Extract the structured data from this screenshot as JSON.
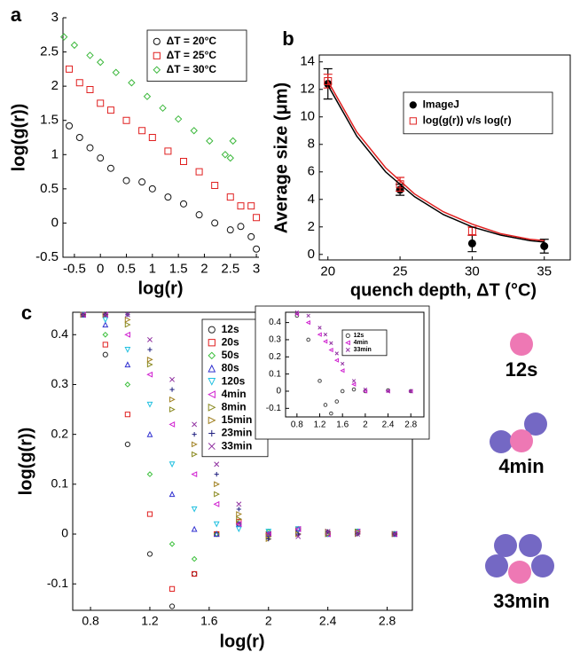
{
  "chart_data": [
    {
      "type": "scatter",
      "panel_label": "a",
      "x_label": "log(r)",
      "y_label": "log(g(r))",
      "xlim": [
        -0.72,
        3.05
      ],
      "ylim": [
        -0.5,
        3
      ],
      "xticks": [
        -0.5,
        0,
        0.5,
        1,
        1.5,
        2,
        2.5,
        3
      ],
      "yticks": [
        -0.5,
        0,
        0.5,
        1,
        1.5,
        2,
        2.5,
        3
      ],
      "series": [
        {
          "name": "ΔT = 20°C",
          "color": "#111111",
          "marker": "circle",
          "x": [
            -0.6,
            -0.4,
            -0.2,
            0,
            0.2,
            0.5,
            0.8,
            1.0,
            1.3,
            1.6,
            1.9,
            2.2,
            2.5,
            2.7,
            2.9,
            3.0
          ],
          "values": [
            1.42,
            1.25,
            1.1,
            0.95,
            0.8,
            0.62,
            0.6,
            0.5,
            0.38,
            0.28,
            0.12,
            0.0,
            -0.1,
            -0.05,
            -0.2,
            -0.38
          ]
        },
        {
          "name": "ΔT = 25°C",
          "color": "#e02020",
          "marker": "square",
          "x": [
            -0.6,
            -0.4,
            -0.2,
            0,
            0.2,
            0.5,
            0.8,
            1.0,
            1.3,
            1.6,
            1.9,
            2.2,
            2.5,
            2.7,
            2.9,
            3.0
          ],
          "values": [
            2.25,
            2.05,
            1.95,
            1.75,
            1.65,
            1.5,
            1.35,
            1.25,
            1.05,
            0.9,
            0.75,
            0.55,
            0.38,
            0.25,
            0.25,
            0.08
          ]
        },
        {
          "name": "ΔT = 30°C",
          "color": "#3cb83c",
          "marker": "diamond",
          "x": [
            -0.7,
            -0.5,
            -0.2,
            0,
            0.3,
            0.6,
            0.9,
            1.2,
            1.5,
            1.8,
            2.1,
            2.4,
            2.5,
            2.55
          ],
          "values": [
            2.72,
            2.6,
            2.45,
            2.35,
            2.2,
            2.05,
            1.85,
            1.68,
            1.52,
            1.35,
            1.2,
            1.0,
            0.95,
            1.2
          ]
        }
      ]
    },
    {
      "type": "scatter",
      "panel_label": "b",
      "x_label": "quench depth, ΔT (°C)",
      "y_label": "Average size (μm)",
      "xlim": [
        19.4,
        36.8
      ],
      "ylim": [
        -0.4,
        14.5
      ],
      "xticks": [
        20,
        25,
        30,
        35
      ],
      "yticks": [
        0,
        2,
        4,
        6,
        8,
        10,
        12,
        14
      ],
      "series": [
        {
          "name": "ImageJ",
          "color": "#000000",
          "marker": "dot",
          "x": [
            20,
            25,
            30,
            35
          ],
          "values": [
            12.4,
            4.7,
            0.8,
            0.6
          ],
          "errors": [
            1.1,
            0.4,
            0.6,
            0.5
          ]
        },
        {
          "name": "log(g(r)) v/s log(r)",
          "color": "#e02020",
          "marker": "square",
          "x": [
            20,
            25,
            30
          ],
          "values": [
            12.6,
            5.1,
            1.7
          ],
          "errors": [
            0.5,
            0.5,
            0.3
          ]
        },
        {
          "color": "#000000",
          "mode": "line",
          "x": [
            20,
            22,
            24,
            26,
            28,
            30,
            32,
            34,
            35
          ],
          "values": [
            12.3,
            8.6,
            6.0,
            4.2,
            2.9,
            2.0,
            1.4,
            1.0,
            0.9
          ]
        },
        {
          "color": "#e02020",
          "mode": "line",
          "x": [
            20,
            22,
            24,
            26,
            28,
            30,
            32,
            34,
            35
          ],
          "values": [
            12.6,
            8.9,
            6.3,
            4.4,
            3.1,
            2.2,
            1.5,
            1.1,
            1.0
          ]
        }
      ]
    },
    {
      "type": "scatter",
      "panel_label": "c",
      "x_label": "log(r)",
      "y_label": "log(g(r))",
      "xlim": [
        0.68,
        2.97
      ],
      "ylim": [
        -0.153,
        0.445
      ],
      "xticks": [
        0.8,
        1.2,
        1.6,
        2,
        2.4,
        2.8
      ],
      "yticks": [
        -0.1,
        0,
        0.1,
        0.2,
        0.3,
        0.4
      ],
      "series": [
        {
          "name": "12s",
          "color": "#222222",
          "marker": "circle",
          "x": [
            0.75,
            0.9,
            1.05,
            1.2,
            1.35,
            1.5,
            1.65,
            1.8,
            2.0,
            2.2,
            2.4,
            2.6,
            2.85
          ],
          "values": [
            0.44,
            0.36,
            0.18,
            -0.04,
            -0.145,
            -0.08,
            0.0,
            0.02,
            0.0,
            0.01,
            0.0,
            0.005,
            0.0
          ]
        },
        {
          "name": "20s",
          "color": "#e02020",
          "marker": "square",
          "x": [
            0.75,
            0.9,
            1.05,
            1.2,
            1.35,
            1.5,
            1.65,
            1.8,
            2.0,
            2.2,
            2.4,
            2.6,
            2.85
          ],
          "values": [
            0.44,
            0.38,
            0.24,
            0.04,
            -0.11,
            -0.08,
            0.0,
            0.025,
            0.0,
            0.01,
            0.0,
            0.005,
            0.0
          ]
        },
        {
          "name": "50s",
          "color": "#3cc03c",
          "marker": "diamond",
          "x": [
            0.75,
            0.9,
            1.05,
            1.2,
            1.35,
            1.5,
            1.65,
            1.8,
            2.0,
            2.2,
            2.4,
            2.6,
            2.85
          ],
          "values": [
            0.44,
            0.4,
            0.3,
            0.12,
            -0.02,
            -0.05,
            0.0,
            0.02,
            0.005,
            0.01,
            0.0,
            0.005,
            0.0
          ]
        },
        {
          "name": "80s",
          "color": "#3030d0",
          "marker": "triangle",
          "x": [
            0.75,
            0.9,
            1.05,
            1.2,
            1.35,
            1.5,
            1.65,
            1.8,
            2.0,
            2.2,
            2.4,
            2.6,
            2.85
          ],
          "values": [
            0.44,
            0.42,
            0.34,
            0.2,
            0.08,
            0.01,
            0.0,
            0.02,
            0.0,
            0.01,
            0.0,
            0.005,
            0.0
          ]
        },
        {
          "name": "120s",
          "color": "#20c0e0",
          "marker": "triangle-down",
          "x": [
            0.75,
            0.9,
            1.05,
            1.2,
            1.35,
            1.5,
            1.65,
            1.8,
            2.0,
            2.2,
            2.4,
            2.6,
            2.85
          ],
          "values": [
            0.44,
            0.43,
            0.37,
            0.26,
            0.14,
            0.05,
            0.02,
            0.01,
            0.005,
            0.01,
            0.0,
            0.005,
            0.0
          ]
        },
        {
          "name": "4min",
          "color": "#d020d0",
          "marker": "triangle-left",
          "x": [
            0.75,
            0.9,
            1.05,
            1.2,
            1.35,
            1.5,
            1.65,
            1.8,
            2.0,
            2.2,
            2.4,
            2.6,
            2.85
          ],
          "values": [
            0.44,
            0.44,
            0.4,
            0.32,
            0.22,
            0.12,
            0.06,
            0.02,
            0.0,
            0.01,
            0.0,
            0.005,
            0.0
          ]
        },
        {
          "name": "8min",
          "color": "#8a8a20",
          "marker": "triangle-right",
          "x": [
            0.75,
            0.9,
            1.05,
            1.2,
            1.35,
            1.5,
            1.65,
            1.8,
            2.0,
            2.2,
            2.4,
            2.6,
            2.85
          ],
          "values": [
            0.44,
            0.44,
            0.42,
            0.34,
            0.25,
            0.16,
            0.08,
            0.03,
            -0.005,
            0.0,
            0.0,
            0.005,
            0.0
          ]
        },
        {
          "name": "15min",
          "color": "#a08020",
          "marker": "triangle-right",
          "x": [
            0.75,
            0.9,
            1.05,
            1.2,
            1.35,
            1.5,
            1.65,
            1.8,
            2.0,
            2.2,
            2.4,
            2.6,
            2.85
          ],
          "values": [
            0.44,
            0.44,
            0.43,
            0.35,
            0.27,
            0.18,
            0.1,
            0.04,
            -0.01,
            0.0,
            0.005,
            0.0,
            0.0
          ]
        },
        {
          "name": "23min",
          "color": "#202080",
          "marker": "plus",
          "x": [
            0.75,
            0.9,
            1.05,
            1.2,
            1.35,
            1.5,
            1.65,
            1.8,
            2.0,
            2.2,
            2.4,
            2.6,
            2.85
          ],
          "values": [
            0.44,
            0.44,
            0.44,
            0.37,
            0.29,
            0.2,
            0.12,
            0.05,
            -0.01,
            0.0,
            0.005,
            0.0,
            0.0
          ]
        },
        {
          "name": "33min",
          "color": "#9030a0",
          "marker": "x",
          "x": [
            0.75,
            0.9,
            1.05,
            1.2,
            1.35,
            1.5,
            1.65,
            1.8,
            2.0,
            2.2,
            2.4,
            2.6,
            2.85
          ],
          "values": [
            0.44,
            0.44,
            0.44,
            0.39,
            0.31,
            0.22,
            0.14,
            0.06,
            0.0,
            -0.005,
            0.005,
            0.0,
            0.0
          ]
        }
      ]
    },
    {
      "type": "scatter",
      "xlim": [
        0.6,
        3.03
      ],
      "ylim": [
        -0.15,
        0.46
      ],
      "xticks": [
        0.8,
        1.2,
        1.6,
        2,
        2.4,
        2.8
      ],
      "yticks": [
        -0.1,
        0,
        0.1,
        0.2,
        0.3,
        0.4
      ],
      "series": [
        {
          "name": "12s",
          "color": "#444444",
          "marker": "circle",
          "x": [
            0.8,
            1.0,
            1.2,
            1.3,
            1.4,
            1.5,
            1.6,
            1.8,
            2.0,
            2.4,
            2.8
          ],
          "values": [
            0.44,
            0.3,
            0.06,
            -0.08,
            -0.13,
            -0.06,
            0.0,
            0.01,
            0.0,
            0.005,
            0.0
          ]
        },
        {
          "name": "4min",
          "color": "#d020d0",
          "marker": "triangle-left",
          "x": [
            0.8,
            1.0,
            1.2,
            1.3,
            1.4,
            1.5,
            1.6,
            1.8,
            2.0,
            2.4,
            2.8
          ],
          "values": [
            0.45,
            0.4,
            0.33,
            0.29,
            0.24,
            0.18,
            0.12,
            0.04,
            0.0,
            0.0,
            0.0
          ]
        },
        {
          "name": "33min",
          "color": "#9030a0",
          "marker": "x",
          "x": [
            0.8,
            1.0,
            1.2,
            1.3,
            1.4,
            1.5,
            1.6,
            1.8,
            2.0,
            2.4,
            2.8
          ],
          "values": [
            0.46,
            0.44,
            0.37,
            0.33,
            0.28,
            0.22,
            0.16,
            0.06,
            0.01,
            0.0,
            0.0
          ]
        }
      ]
    }
  ],
  "diagram": {
    "labels": [
      "12s",
      "4min",
      "33min"
    ]
  }
}
